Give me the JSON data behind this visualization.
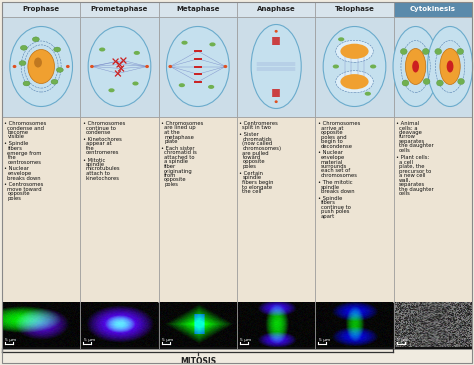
{
  "title": "MITOSIS",
  "columns": [
    "Prophase",
    "Prometaphase",
    "Metaphase",
    "Anaphase",
    "Telophase",
    "Cytokinesis"
  ],
  "header_bg": "#d8e4ec",
  "body_bg": "#ede4d4",
  "cytokinesis_header_bg": "#5a8aab",
  "cytokinesis_header_fg": "#ffffff",
  "border_color": "#999999",
  "title_color": "#222222",
  "bullet_texts": [
    [
      "Chromosomes condense and become visible",
      "Spindle fibers emerge from the centrosomes",
      "Nuclear envelope breaks down",
      "Centrosomes move toward opposite poles"
    ],
    [
      "Chromosomes continue to condense",
      "Kinetochores appear at the centromeres",
      "Mitotic spindle microtubules attach to kinetochores"
    ],
    [
      "Chromosomes are lined up at the metaphase plate",
      "Each sister chromatid is attached to a spindle fiber originating from opposite poles"
    ],
    [
      "Centromeres split in two",
      "Sister chromatids (now called chromosomes) are pulled toward opposite poles",
      "Certain spindle fibers begin to elongate the cell"
    ],
    [
      "Chromosomes arrive at opposite poles and begin to decondense",
      "Nuclear envelope material surrounds each set of chromosomes",
      "The mitotic spindle breaks down",
      "Spindle fibers continue to push poles apart"
    ],
    [
      "Animal cells: a cleavage furrow separates the daughter cells",
      "Plant cells: a cell plate, the precursor to a new cell wall, separates the daughter cells"
    ]
  ],
  "scale_label": "5 μm",
  "figure_bg": "#f0ebe0",
  "outer_bg": "#ffffff",
  "cell_bg": "#c5e0ee",
  "cell_border": "#6aabcc",
  "nucleus_color": "#f0a030",
  "nucleus_border": "#cc7010",
  "green_organelle": "#70b050",
  "spindle_color": "#6878c0",
  "chr_color": "#cc2020",
  "diagram_bg": "#ccdde8"
}
